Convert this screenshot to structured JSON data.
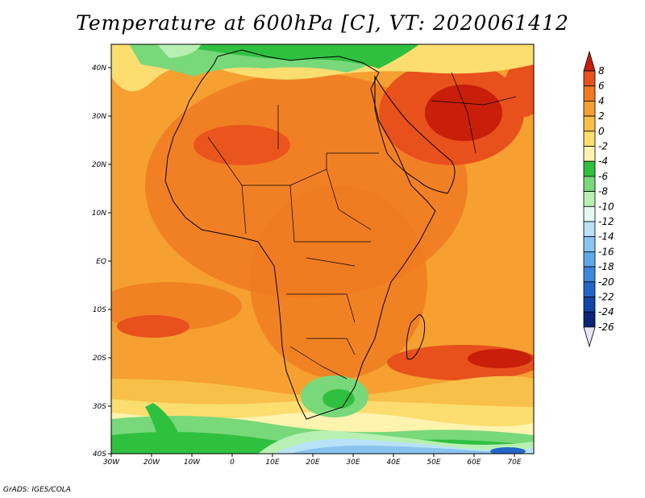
{
  "title": "Temperature at 600hPa [C], VT: 2020061412",
  "footer": "GrADS: IGES/COLA",
  "map": {
    "lon_range": [
      -30,
      75
    ],
    "lat_range": [
      -40,
      45
    ],
    "lat_labels": [
      "40N",
      "30N",
      "20N",
      "10N",
      "EQ",
      "10S",
      "20S",
      "30S",
      "40S"
    ],
    "lon_labels": [
      "30W",
      "20W",
      "10W",
      "0",
      "10E",
      "20E",
      "30E",
      "40E",
      "50E",
      "60E",
      "70E"
    ]
  },
  "colorbar": {
    "labels": [
      "8",
      "6",
      "4",
      "2",
      "0",
      "-2",
      "-4",
      "-6",
      "-8",
      "-10",
      "-12",
      "-14",
      "-16",
      "-18",
      "-20",
      "-22",
      "-24",
      "-26"
    ],
    "colors": [
      "#c81e0a",
      "#e8501c",
      "#f07a22",
      "#f5a030",
      "#f8c048",
      "#fbdd70",
      "#fff3b0",
      "#30c040",
      "#78d87a",
      "#b8f0b4",
      "#e4fbf5",
      "#b8e2f8",
      "#88c4f0",
      "#5ea8e8",
      "#3d88dc",
      "#2466c8",
      "#1244a8",
      "#0a2478",
      "#e6e6f8"
    ]
  }
}
